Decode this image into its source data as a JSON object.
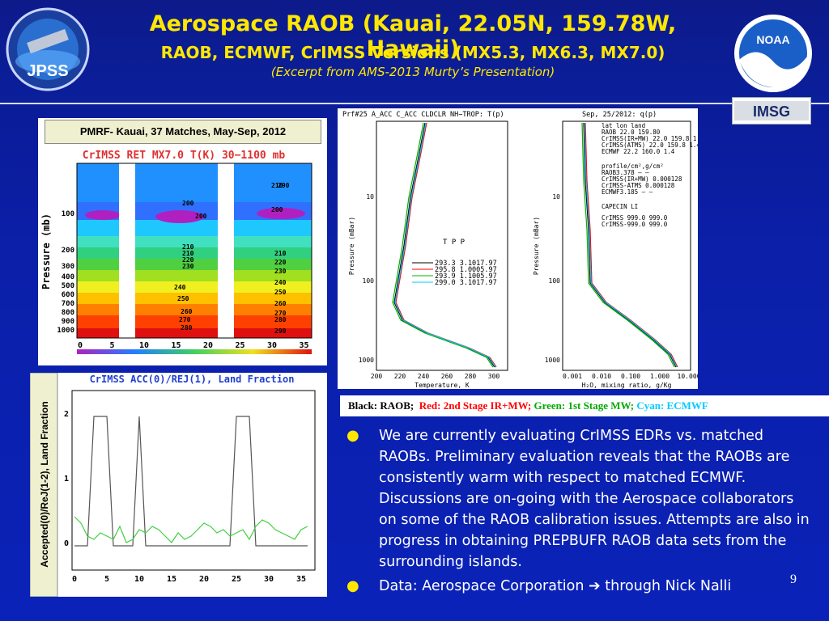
{
  "header": {
    "title": "Aerospace RAOB (Kauai, 22.05N, 159.78W, Hawaii)",
    "subtitle": "RAOB, ECMWF, CrIMSS Versions (MX5.3, MX6.3, MX7.0)",
    "excerpt_prefix": "(Excerpt from",
    "excerpt_rest": "AMS-2013 Murty’s Presentation)"
  },
  "logos": {
    "jpss": "JPSS",
    "jpss_ring": "JOINT POLAR SATELLITE SYSTEM",
    "noaa": "NOAA",
    "imsg": "IMSG"
  },
  "left_top_panel": {
    "caption": "PMRF- Kauai, 37 Matches, May-Sep, 2012",
    "plot_title": "CrIMSS RET MX7.0 T(K) 30−1100 mb",
    "ylabel": "Pressure (mb)",
    "yticks": [
      "100",
      "200",
      "300",
      "400",
      "500",
      "600",
      "700",
      "800",
      "900",
      "1000"
    ],
    "xticks": [
      "0",
      "5",
      "10",
      "15",
      "20",
      "25",
      "30",
      "35"
    ],
    "contour_labels": [
      "210",
      "200",
      "200",
      "200",
      "210",
      "210",
      "220",
      "230",
      "240",
      "250",
      "260",
      "270",
      "280",
      "290",
      "210",
      "220",
      "230",
      "240",
      "250",
      "260",
      "270",
      "280",
      "290"
    ]
  },
  "left_bottom_panel": {
    "plot_title": "CrIMSS ACC(0)/REJ(1), Land Fraction",
    "ylabel": "Accepted(0)/ReJ(1-2), Land Fraction",
    "yticks": [
      "0",
      "1",
      "2"
    ],
    "xticks": [
      "0",
      "5",
      "10",
      "15",
      "20",
      "25",
      "30",
      "35"
    ]
  },
  "profile_panel": {
    "left_title": "Prf#25 A_ACC C_ACC CLDCLR NH−TROP: T(p)",
    "right_title": "Sep, 25/2012: q(p)",
    "left_ylabel": "Pressure (mBar)",
    "right_ylabel": "Pressure (mBar)",
    "left_xlabel": "Temperature, K",
    "right_xlabel": "H₂O, mixing ratio, g/Kg",
    "left_xticks": [
      "200",
      "220",
      "240",
      "260",
      "280",
      "300"
    ],
    "right_xticks": [
      "0.001",
      "0.010",
      "0.100",
      "1.000",
      "10.000"
    ],
    "yticks": [
      "10",
      "100",
      "1000"
    ],
    "tsp_header": "T P P",
    "tsp_rows": [
      "293.3 3.1017.97",
      "295.8 1.0005.97",
      "293.9 1.1005.97",
      "299.0 3.1017.97"
    ],
    "right_text": [
      "lat lon land",
      "RAOB 22.0 159.80",
      "CrIMSS(IR+MW) 22.0 159.8 1.4",
      "CrIMSS(ATMS) 22.0 159.8 1.4",
      "ECMWF 22.2 160.0 1.4",
      "profile/cm²,g/cm²",
      "RAOB3.378 — —",
      "CrIMSS(IR+MW) 0.000128",
      "CrIMSS-ATMS 0.000128",
      "ECMWF3.185 — —",
      "CAPECIN LI",
      "CrIMSS 999.0 999.0",
      "CrIMSS-999.0 999.0"
    ]
  },
  "legend": {
    "black": "Black: RAOB;",
    "red": "Red: 2nd Stage IR+MW;",
    "green": "Green: 1st Stage MW;",
    "cyan": "Cyan: ECMWF",
    "colors": {
      "black": "#000000",
      "red": "#ff0000",
      "green": "#00a000",
      "cyan": "#00c8ff"
    }
  },
  "bullets": [
    "We are currently evaluating CrIMSS EDRs vs. matched RAOBs.  Preliminary evaluation reveals that the RAOBs are consistently warm with respect to matched ECMWF.  Discussions are on-going with the Aerospace collaborators on some of the RAOB calibration issues.  Attempts are also in progress in obtaining PREPBUFR RAOB data sets from the surrounding islands.",
    "Data: Aerospace Corporation ➔ through Nick Nalli"
  ],
  "page_number": "9"
}
